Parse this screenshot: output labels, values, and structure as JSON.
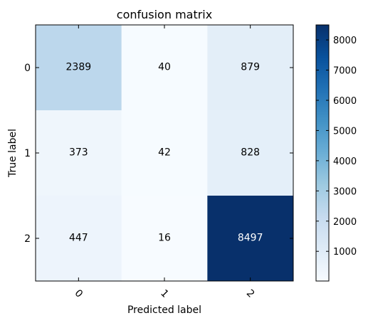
{
  "chart_data": {
    "type": "heatmap",
    "title": "confusion matrix",
    "xlabel": "Predicted label",
    "ylabel": "True label",
    "x_categories": [
      "0",
      "1",
      "2"
    ],
    "y_categories": [
      "0",
      "1",
      "2"
    ],
    "values": [
      [
        2389,
        40,
        879
      ],
      [
        373,
        42,
        828
      ],
      [
        447,
        16,
        8497
      ]
    ],
    "colormap": "Blues",
    "colorbar": {
      "min": 16,
      "max": 8497,
      "ticks": [
        1000,
        2000,
        3000,
        4000,
        5000,
        6000,
        7000,
        8000
      ]
    },
    "x_tick_rotation_deg": 45,
    "colors": {
      "low": "#f7fbff",
      "high": "#08306b",
      "text_dark": "#000000",
      "text_light": "#ffffff"
    }
  }
}
